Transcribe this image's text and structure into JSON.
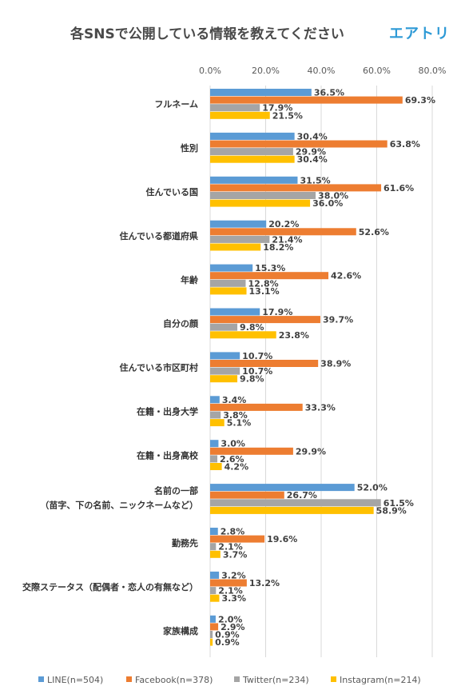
{
  "title": "各SNSで公開している情報を教えてください",
  "brand": "エアトリ",
  "chart_data": {
    "type": "bar",
    "orientation": "horizontal",
    "x_ticks": [
      "0.0%",
      "20.0%",
      "40.0%",
      "60.0%",
      "80.0%"
    ],
    "xlim": [
      0,
      80
    ],
    "grid": "vertical",
    "legend_position": "bottom",
    "categories": [
      "フルネーム",
      "性別",
      "住んでいる国",
      "住んでいる都道府県",
      "年齢",
      "自分の顔",
      "住んでいる市区町村",
      "在籍・出身大学",
      "在籍・出身高校",
      [
        "名前の一部",
        "（苗字、下の名前、ニックネームなど）"
      ],
      "勤務先",
      "交際ステータス（配偶者・恋人の有無など）",
      "家族構成"
    ],
    "series": [
      {
        "name": "LINE(n=504)",
        "color": "#5b9bd5",
        "values": [
          36.5,
          30.4,
          31.5,
          20.2,
          15.3,
          17.9,
          10.7,
          3.4,
          3.0,
          52.0,
          2.8,
          3.2,
          2.0
        ],
        "labels": [
          "36.5%",
          "30.4%",
          "31.5%",
          "20.2%",
          "15.3%",
          "17.9%",
          "10.7%",
          "3.4%",
          "3.0%",
          "52.0%",
          "2.8%",
          "3.2%",
          "2.0%"
        ]
      },
      {
        "name": "Facebook(n=378)",
        "color": "#ed7d31",
        "values": [
          69.3,
          63.8,
          61.6,
          52.6,
          42.6,
          39.7,
          38.9,
          33.3,
          29.9,
          26.7,
          19.6,
          13.2,
          2.9
        ],
        "labels": [
          "69.3%",
          "63.8%",
          "61.6%",
          "52.6%",
          "42.6%",
          "39.7%",
          "38.9%",
          "33.3%",
          "29.9%",
          "26.7%",
          "19.6%",
          "13.2%",
          "2.9%"
        ]
      },
      {
        "name": "Twitter(n=234)",
        "color": "#a5a5a5",
        "values": [
          17.9,
          29.9,
          38.0,
          21.4,
          12.8,
          9.8,
          10.7,
          3.8,
          2.6,
          61.5,
          2.1,
          2.1,
          0.9
        ],
        "labels": [
          "17.9%",
          "29.9%",
          "38.0%",
          "21.4%",
          "12.8%",
          "9.8%",
          "10.7%",
          "3.8%",
          "2.6%",
          "61.5%",
          "2.1%",
          "2.1%",
          "0.9%"
        ]
      },
      {
        "name": "Instagram(n=214)",
        "color": "#ffc000",
        "values": [
          21.5,
          30.4,
          36.0,
          18.2,
          13.1,
          23.8,
          9.8,
          5.1,
          4.2,
          58.9,
          3.7,
          3.3,
          0.9
        ],
        "labels": [
          "21.5%",
          "30.4%",
          "36.0%",
          "18.2%",
          "13.1%",
          "23.8%",
          "9.8%",
          "5.1%",
          "4.2%",
          "58.9%",
          "3.7%",
          "3.3%",
          "0.9%"
        ]
      }
    ]
  }
}
